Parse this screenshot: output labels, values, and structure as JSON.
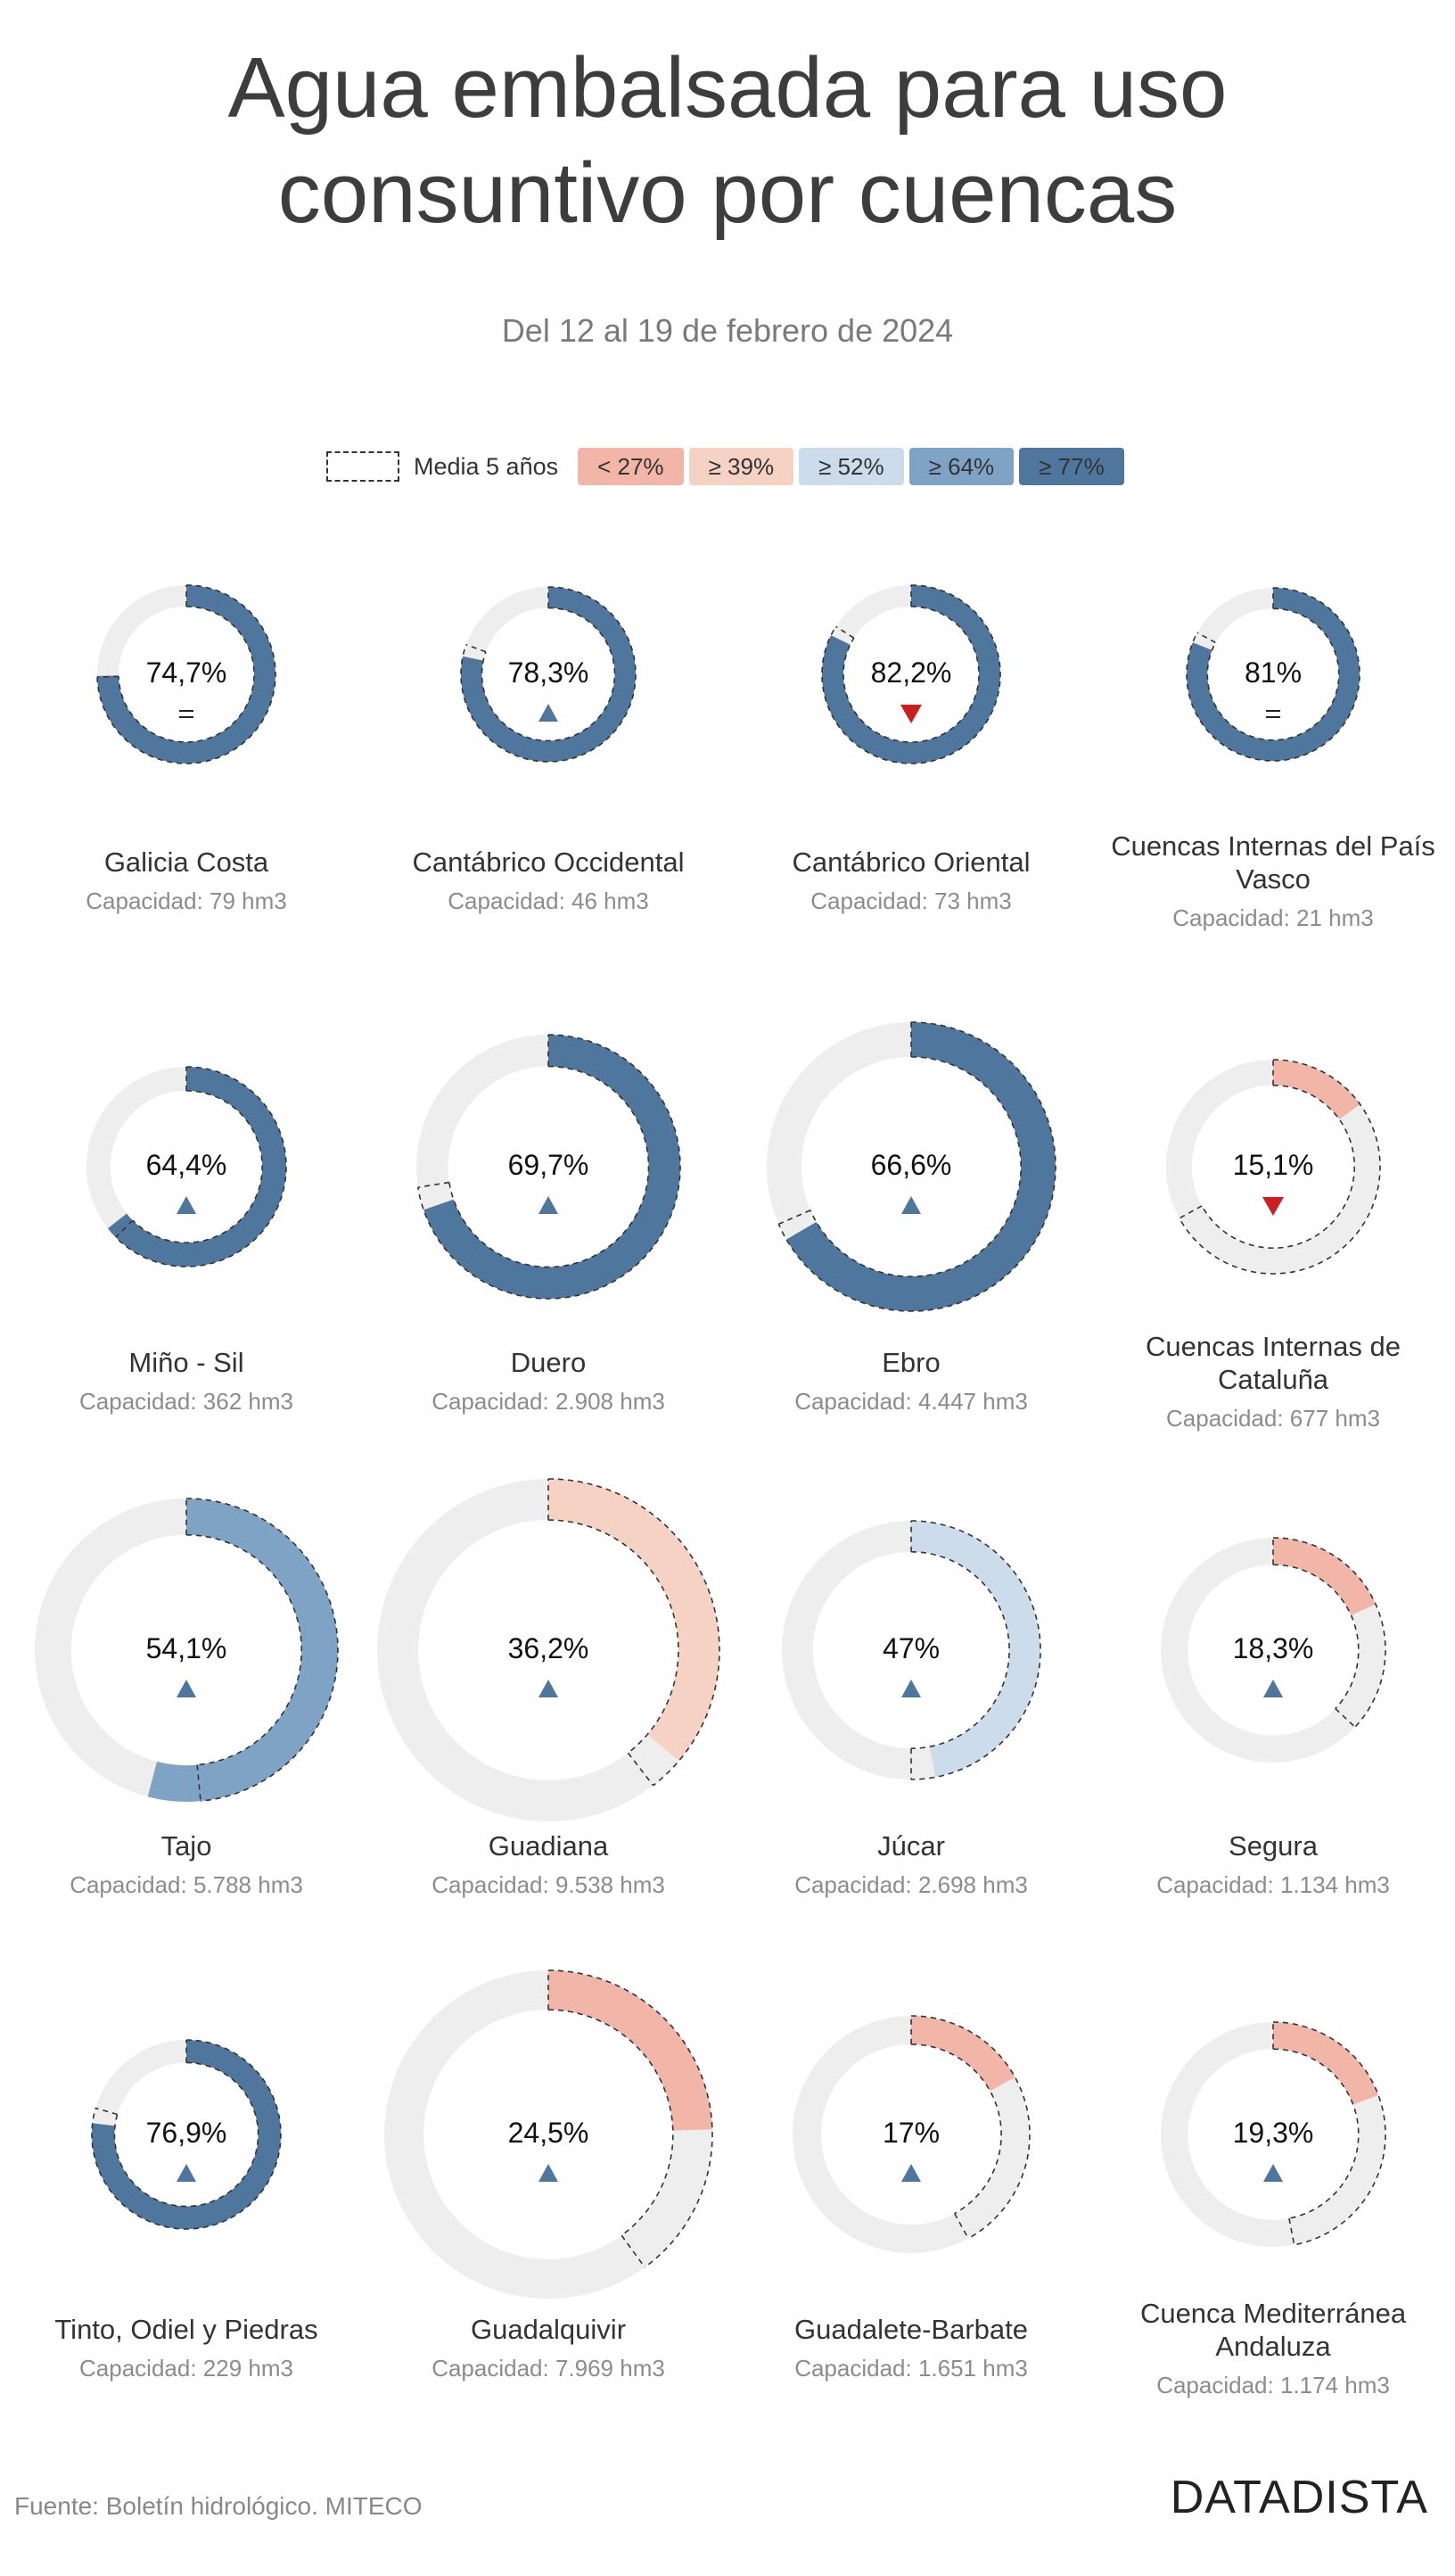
{
  "header": {
    "title_line1": "Agua embalsada para uso",
    "title_line2": "consuntivo por cuencas",
    "subtitle": "Del 12 al 19 de febrero de 2024"
  },
  "legend": {
    "avg_label": "Media 5 años",
    "bins": [
      {
        "label": "< 27%",
        "color": "#f2b6a8"
      },
      {
        "label": "≥ 39%",
        "color": "#f5d2c3"
      },
      {
        "label": "≥ 52%",
        "color": "#cddcea"
      },
      {
        "label": "≥ 64%",
        "color": "#7fa3c4"
      },
      {
        "label": "≥ 77%",
        "color": "#4f769c"
      }
    ]
  },
  "colors": {
    "track": "#eeeeee",
    "trend_up": "#4f769c",
    "trend_down": "#cc1f1f"
  },
  "chart_data": {
    "type": "donut",
    "capacity_prefix": "Capacidad: ",
    "basins": [
      {
        "name": [
          "Galicia Costa"
        ],
        "value": 74.7,
        "value_label": "74,7%",
        "avg5": 74.5,
        "trend": "equal",
        "capacity": "79 hm3",
        "color": "#4f769c"
      },
      {
        "name": [
          "Cantábrico Occidental"
        ],
        "value": 78.3,
        "value_label": "78,3%",
        "avg5": 80.5,
        "trend": "up",
        "capacity": "46 hm3",
        "color": "#4f769c"
      },
      {
        "name": [
          "Cantábrico Oriental"
        ],
        "value": 82.2,
        "value_label": "82,2%",
        "avg5": 84.0,
        "trend": "down",
        "capacity": "73 hm3",
        "color": "#4f769c"
      },
      {
        "name": [
          "Cuencas Internas del País",
          "Vasco"
        ],
        "value": 81.0,
        "value_label": "81%",
        "avg5": 83.0,
        "trend": "equal",
        "capacity": "21 hm3",
        "color": "#4f769c"
      },
      {
        "name": [
          "Miño - Sil"
        ],
        "value": 64.4,
        "value_label": "64,4%",
        "avg5": 62.5,
        "trend": "up",
        "capacity": "362 hm3",
        "color": "#4f769c"
      },
      {
        "name": [
          "Duero"
        ],
        "value": 69.7,
        "value_label": "69,7%",
        "avg5": 72.5,
        "trend": "up",
        "capacity": "2.908 hm3",
        "color": "#4f769c"
      },
      {
        "name": [
          "Ebro"
        ],
        "value": 66.6,
        "value_label": "66,6%",
        "avg5": 68.5,
        "trend": "up",
        "capacity": "4.447 hm3",
        "color": "#4f769c"
      },
      {
        "name": [
          "Cuencas Internas de",
          "Cataluña"
        ],
        "value": 15.1,
        "value_label": "15,1%",
        "avg5": 67.0,
        "trend": "down",
        "capacity": "677 hm3",
        "color": "#f2b6a8"
      },
      {
        "name": [
          "Tajo"
        ],
        "value": 54.1,
        "value_label": "54,1%",
        "avg5": 48.5,
        "trend": "up",
        "capacity": "5.788 hm3",
        "color": "#7fa3c4"
      },
      {
        "name": [
          "Guadiana"
        ],
        "value": 36.2,
        "value_label": "36,2%",
        "avg5": 39.5,
        "trend": "up",
        "capacity": "9.538 hm3",
        "color": "#f5d2c3"
      },
      {
        "name": [
          "Júcar"
        ],
        "value": 47.0,
        "value_label": "47%",
        "avg5": 50.0,
        "trend": "up",
        "capacity": "2.698 hm3",
        "color": "#cddcea"
      },
      {
        "name": [
          "Segura"
        ],
        "value": 18.3,
        "value_label": "18,3%",
        "avg5": 37.0,
        "trend": "up",
        "capacity": "1.134 hm3",
        "color": "#f2b6a8"
      },
      {
        "name": [
          "Tinto, Odiel y Piedras"
        ],
        "value": 76.9,
        "value_label": "76,9%",
        "avg5": 79.5,
        "trend": "up",
        "capacity": "229 hm3",
        "color": "#4f769c"
      },
      {
        "name": [
          "Guadalquivir"
        ],
        "value": 24.5,
        "value_label": "24,5%",
        "avg5": 40.0,
        "trend": "up",
        "capacity": "7.969 hm3",
        "color": "#f2b6a8"
      },
      {
        "name": [
          "Guadalete-Barbate"
        ],
        "value": 17.0,
        "value_label": "17%",
        "avg5": 42.0,
        "trend": "up",
        "capacity": "1.651 hm3",
        "color": "#f2b6a8"
      },
      {
        "name": [
          "Cuenca Mediterránea",
          "Andaluza"
        ],
        "value": 19.3,
        "value_label": "19,3%",
        "avg5": 47.0,
        "trend": "up",
        "capacity": "1.174 hm3",
        "color": "#f2b6a8"
      }
    ]
  },
  "footer": {
    "source": "Fuente: Boletín hidrológico. MITECO",
    "brand": "DATADISTA"
  }
}
